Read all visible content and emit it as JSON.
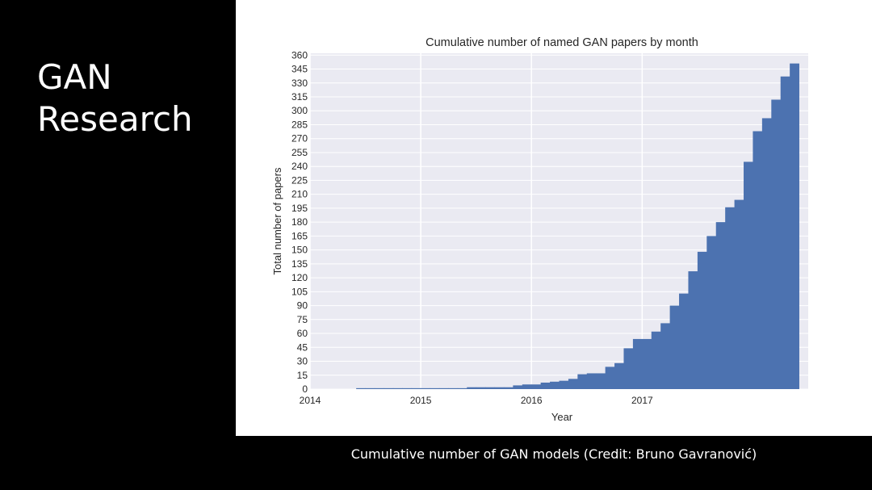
{
  "slide": {
    "title_lines": [
      "GAN",
      "Research"
    ],
    "caption": "Cumulative number of GAN models (Credit: Bruno Gavranović)"
  },
  "colors": {
    "background": "#000000",
    "panel": "#ffffff",
    "plot_bg": "#eaeaf2",
    "bar": "#4c72b0",
    "grid": "#ffffff",
    "text": "#ffffff"
  },
  "chart_data": {
    "type": "bar",
    "title": "Cumulative number of named GAN papers by month",
    "xlabel": "Year",
    "ylabel": "Total number of papers",
    "x_range": [
      2014.0,
      2018.5
    ],
    "ylim": [
      0,
      362
    ],
    "x_ticks": [
      {
        "value": 2014,
        "label": "2014"
      },
      {
        "value": 2015,
        "label": "2015"
      },
      {
        "value": 2016,
        "label": "2016"
      },
      {
        "value": 2017,
        "label": "2017"
      }
    ],
    "y_ticks": [
      0,
      15,
      30,
      45,
      60,
      75,
      90,
      105,
      120,
      135,
      150,
      165,
      180,
      195,
      210,
      225,
      240,
      255,
      270,
      285,
      300,
      315,
      330,
      345,
      360
    ],
    "grid": true,
    "months_start": "2014-06",
    "values": [
      1,
      1,
      1,
      1,
      1,
      1,
      1,
      1,
      1,
      1,
      1,
      1,
      2,
      2,
      2,
      2,
      2,
      4,
      5,
      5,
      7,
      8,
      9,
      11,
      16,
      17,
      17,
      24,
      28,
      44,
      54,
      54,
      62,
      71,
      90,
      103,
      127,
      148,
      165,
      180,
      196,
      204,
      245,
      278,
      292,
      312,
      337,
      351
    ]
  }
}
